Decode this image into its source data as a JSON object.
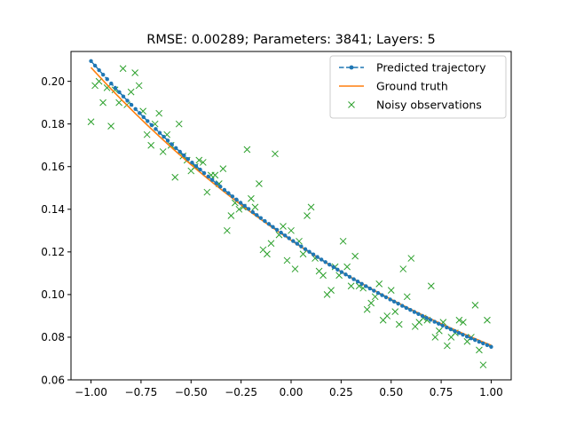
{
  "chart_data": {
    "type": "line",
    "title": "RMSE: 0.00289; Parameters: 3841; Layers: 5",
    "xlabel": "",
    "ylabel": "",
    "xlim": [
      -1.1,
      1.1
    ],
    "ylim": [
      0.06,
      0.214
    ],
    "x_ticks": [
      -1.0,
      -0.75,
      -0.5,
      -0.25,
      0.0,
      0.25,
      0.5,
      0.75,
      1.0
    ],
    "x_tick_labels": [
      "−1.00",
      "−0.75",
      "−0.50",
      "−0.25",
      "0.00",
      "0.25",
      "0.50",
      "0.75",
      "1.00"
    ],
    "y_ticks": [
      0.06,
      0.08,
      0.1,
      0.12,
      0.14,
      0.16,
      0.18,
      0.2
    ],
    "y_tick_labels": [
      "0.06",
      "0.08",
      "0.10",
      "0.12",
      "0.14",
      "0.16",
      "0.18",
      "0.20"
    ],
    "grid": false,
    "legend_position": "top-right",
    "colors": {
      "predicted": "#1f77b4",
      "ground_truth": "#ff7f0e",
      "noisy": "#2ca02c"
    },
    "series": [
      {
        "name": "Predicted trajectory",
        "style": "dashed line with dot markers",
        "model": {
          "form": "exponential",
          "start": 0.2095,
          "end": 0.0755,
          "x_from": -1.0,
          "x_to": 1.0,
          "n_points": 100
        }
      },
      {
        "name": "Ground truth",
        "style": "solid line",
        "model": {
          "form": "exponential",
          "start": 0.2065,
          "end": 0.0762,
          "x_from": -1.0,
          "x_to": 1.0
        }
      },
      {
        "name": "Noisy observations",
        "style": "x markers",
        "points": [
          [
            -1.0,
            0.181
          ],
          [
            -0.98,
            0.198
          ],
          [
            -0.96,
            0.2
          ],
          [
            -0.94,
            0.19
          ],
          [
            -0.92,
            0.197
          ],
          [
            -0.9,
            0.179
          ],
          [
            -0.88,
            0.196
          ],
          [
            -0.86,
            0.19
          ],
          [
            -0.84,
            0.206
          ],
          [
            -0.82,
            0.189
          ],
          [
            -0.8,
            0.195
          ],
          [
            -0.78,
            0.204
          ],
          [
            -0.76,
            0.198
          ],
          [
            -0.74,
            0.186
          ],
          [
            -0.72,
            0.175
          ],
          [
            -0.7,
            0.17
          ],
          [
            -0.68,
            0.18
          ],
          [
            -0.66,
            0.185
          ],
          [
            -0.64,
            0.167
          ],
          [
            -0.62,
            0.175
          ],
          [
            -0.6,
            0.17
          ],
          [
            -0.58,
            0.155
          ],
          [
            -0.56,
            0.18
          ],
          [
            -0.54,
            0.165
          ],
          [
            -0.52,
            0.163
          ],
          [
            -0.5,
            0.158
          ],
          [
            -0.48,
            0.16
          ],
          [
            -0.46,
            0.163
          ],
          [
            -0.44,
            0.162
          ],
          [
            -0.42,
            0.148
          ],
          [
            -0.4,
            0.156
          ],
          [
            -0.38,
            0.156
          ],
          [
            -0.36,
            0.152
          ],
          [
            -0.34,
            0.159
          ],
          [
            -0.32,
            0.13
          ],
          [
            -0.3,
            0.137
          ],
          [
            -0.28,
            0.143
          ],
          [
            -0.26,
            0.14
          ],
          [
            -0.24,
            0.141
          ],
          [
            -0.22,
            0.168
          ],
          [
            -0.2,
            0.145
          ],
          [
            -0.18,
            0.141
          ],
          [
            -0.16,
            0.152
          ],
          [
            -0.14,
            0.121
          ],
          [
            -0.12,
            0.119
          ],
          [
            -0.1,
            0.124
          ],
          [
            -0.08,
            0.166
          ],
          [
            -0.06,
            0.128
          ],
          [
            -0.04,
            0.132
          ],
          [
            -0.02,
            0.116
          ],
          [
            0.0,
            0.13
          ],
          [
            0.02,
            0.112
          ],
          [
            0.04,
            0.125
          ],
          [
            0.06,
            0.119
          ],
          [
            0.08,
            0.137
          ],
          [
            0.1,
            0.141
          ],
          [
            0.12,
            0.117
          ],
          [
            0.14,
            0.111
          ],
          [
            0.16,
            0.109
          ],
          [
            0.18,
            0.1
          ],
          [
            0.2,
            0.102
          ],
          [
            0.22,
            0.113
          ],
          [
            0.24,
            0.109
          ],
          [
            0.26,
            0.125
          ],
          [
            0.28,
            0.113
          ],
          [
            0.3,
            0.104
          ],
          [
            0.32,
            0.118
          ],
          [
            0.34,
            0.104
          ],
          [
            0.36,
            0.103
          ],
          [
            0.38,
            0.093
          ],
          [
            0.4,
            0.096
          ],
          [
            0.42,
            0.099
          ],
          [
            0.44,
            0.105
          ],
          [
            0.46,
            0.088
          ],
          [
            0.48,
            0.09
          ],
          [
            0.5,
            0.102
          ],
          [
            0.52,
            0.092
          ],
          [
            0.54,
            0.086
          ],
          [
            0.56,
            0.112
          ],
          [
            0.58,
            0.099
          ],
          [
            0.6,
            0.117
          ],
          [
            0.62,
            0.085
          ],
          [
            0.64,
            0.087
          ],
          [
            0.66,
            0.089
          ],
          [
            0.68,
            0.088
          ],
          [
            0.7,
            0.104
          ],
          [
            0.72,
            0.08
          ],
          [
            0.74,
            0.083
          ],
          [
            0.76,
            0.087
          ],
          [
            0.78,
            0.076
          ],
          [
            0.8,
            0.08
          ],
          [
            0.82,
            0.082
          ],
          [
            0.84,
            0.088
          ],
          [
            0.86,
            0.087
          ],
          [
            0.88,
            0.078
          ],
          [
            0.9,
            0.08
          ],
          [
            0.92,
            0.095
          ],
          [
            0.94,
            0.074
          ],
          [
            0.96,
            0.067
          ],
          [
            0.98,
            0.088
          ]
        ]
      }
    ]
  }
}
